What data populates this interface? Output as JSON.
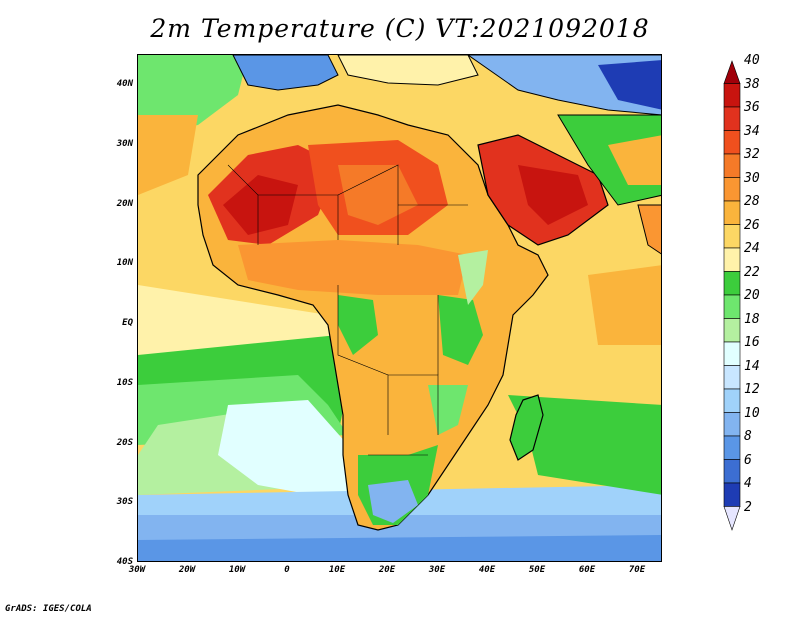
{
  "title": "2m Temperature (C) VT:2021092018",
  "credit": "GrADS: IGES/COLA",
  "axes": {
    "lon_ticks": [
      "30W",
      "20W",
      "10W",
      "0",
      "10E",
      "20E",
      "30E",
      "40E",
      "50E",
      "60E",
      "70E"
    ],
    "lat_ticks": [
      "40N",
      "30N",
      "20N",
      "10N",
      "EQ",
      "10S",
      "20S",
      "30S",
      "40S"
    ],
    "lon_range": [
      -30,
      75
    ],
    "lat_range": [
      -40,
      45
    ]
  },
  "legend": {
    "unit": "C",
    "levels": [
      "40",
      "38",
      "36",
      "34",
      "32",
      "30",
      "28",
      "26",
      "24",
      "22",
      "20",
      "18",
      "16",
      "14",
      "12",
      "10",
      "8",
      "6",
      "4",
      "2"
    ],
    "colors_top_to_bottom": [
      "#a0000a",
      "#c8140f",
      "#e1321e",
      "#f0501e",
      "#f57a28",
      "#fa9632",
      "#fab43c",
      "#fcd764",
      "#fff2aa",
      "#3ccd3c",
      "#6ee66e",
      "#b4f0a0",
      "#e1ffff",
      "#c8e6ff",
      "#a0d2fa",
      "#82b4f0",
      "#5a96e6",
      "#3c6ed2",
      "#1e3cb4",
      "#0a1478"
    ]
  },
  "colors": {
    "ocean_base": "#fff2aa",
    "land_outline": "#000000"
  }
}
